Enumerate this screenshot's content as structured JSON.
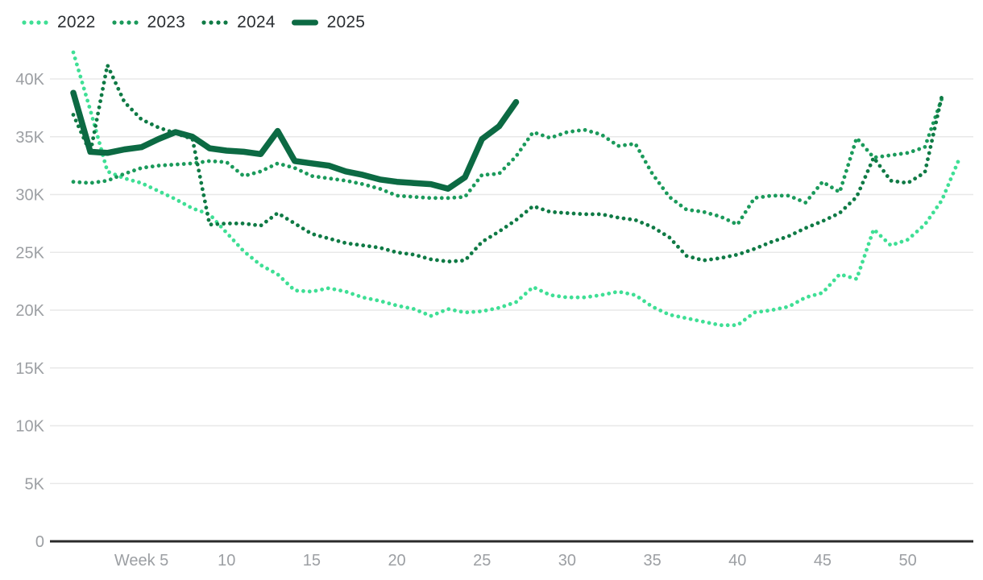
{
  "chart_data": {
    "type": "line",
    "title": "",
    "unit": "K",
    "grid": "horizontal",
    "legend_position": "top-left",
    "x_axis": {
      "label": "",
      "ticks": [
        {
          "label": "Week 5",
          "week": 5
        },
        {
          "label": "10",
          "week": 10
        },
        {
          "label": "15",
          "week": 15
        },
        {
          "label": "20",
          "week": 20
        },
        {
          "label": "25",
          "week": 25
        },
        {
          "label": "30",
          "week": 30
        },
        {
          "label": "35",
          "week": 35
        },
        {
          "label": "40",
          "week": 40
        },
        {
          "label": "45",
          "week": 45
        },
        {
          "label": "50",
          "week": 50
        }
      ],
      "range_weeks": [
        1,
        53
      ]
    },
    "y_axis": {
      "label": "",
      "ticks": [
        {
          "label": "0",
          "value": 0
        },
        {
          "label": "5K",
          "value": 5
        },
        {
          "label": "10K",
          "value": 10
        },
        {
          "label": "15K",
          "value": 15
        },
        {
          "label": "20K",
          "value": 20
        },
        {
          "label": "25K",
          "value": 25
        },
        {
          "label": "30K",
          "value": 30
        },
        {
          "label": "35K",
          "value": 35
        },
        {
          "label": "40K",
          "value": 40
        }
      ],
      "ylim": [
        0,
        42.5
      ]
    },
    "colors": {
      "axis_line": "#2b2b2b",
      "gridline": "#e8e8e8",
      "tick_text": "#9c9fa3",
      "legend_text": "#2b2f33"
    },
    "series": [
      {
        "name": "2022",
        "color": "#3fdf95",
        "style": "dotted",
        "start_week": 1,
        "values": [
          42.3,
          37.3,
          32.0,
          31.4,
          31.0,
          30.3,
          29.6,
          28.8,
          28.3,
          26.7,
          25.1,
          23.9,
          23.1,
          21.7,
          21.6,
          21.9,
          21.6,
          21.1,
          20.8,
          20.4,
          20.1,
          19.5,
          20.1,
          19.8,
          19.9,
          20.2,
          20.7,
          22.0,
          21.3,
          21.1,
          21.1,
          21.3,
          21.6,
          21.3,
          20.3,
          19.6,
          19.3,
          19.0,
          18.7,
          18.7,
          19.8,
          20.0,
          20.3,
          21.1,
          21.5,
          23.1,
          22.7,
          27.0,
          25.6,
          26.1,
          27.4,
          29.5,
          33.0
        ]
      },
      {
        "name": "2023",
        "color": "#1b9a5b",
        "style": "dotted",
        "start_week": 1,
        "values": [
          31.1,
          31.0,
          31.2,
          31.8,
          32.3,
          32.5,
          32.6,
          32.7,
          32.9,
          32.8,
          31.6,
          32.0,
          32.7,
          32.3,
          31.6,
          31.4,
          31.2,
          30.9,
          30.5,
          29.9,
          29.8,
          29.7,
          29.7,
          29.8,
          31.7,
          31.8,
          33.3,
          35.4,
          34.9,
          35.4,
          35.6,
          35.2,
          34.2,
          34.4,
          31.8,
          29.8,
          28.7,
          28.5,
          28.1,
          27.4,
          29.7,
          29.9,
          29.9,
          29.3,
          31.1,
          30.2,
          34.9,
          33.2,
          33.4,
          33.6,
          34.1,
          38.3
        ]
      },
      {
        "name": "2024",
        "color": "#0f7a45",
        "style": "dotted",
        "start_week": 1,
        "values": [
          36.9,
          33.6,
          41.2,
          38.0,
          36.5,
          35.8,
          35.3,
          34.8,
          27.4,
          27.5,
          27.5,
          27.3,
          28.4,
          27.5,
          26.6,
          26.2,
          25.8,
          25.6,
          25.4,
          25.0,
          24.8,
          24.4,
          24.2,
          24.3,
          25.9,
          26.8,
          27.8,
          29.0,
          28.5,
          28.4,
          28.3,
          28.3,
          28.0,
          27.8,
          27.2,
          26.3,
          24.7,
          24.3,
          24.5,
          24.8,
          25.3,
          25.9,
          26.4,
          27.1,
          27.7,
          28.4,
          29.8,
          33.2,
          31.2,
          31.0,
          31.9,
          38.5
        ]
      },
      {
        "name": "2025",
        "color": "#0c6a43",
        "style": "solid",
        "start_week": 1,
        "values": [
          38.8,
          33.7,
          33.6,
          33.9,
          34.1,
          34.8,
          35.4,
          35.0,
          34.0,
          33.8,
          33.7,
          33.5,
          35.5,
          32.9,
          32.7,
          32.5,
          32.0,
          31.7,
          31.3,
          31.1,
          31.0,
          30.9,
          30.5,
          31.5,
          34.8,
          35.9,
          38.0
        ]
      }
    ]
  }
}
